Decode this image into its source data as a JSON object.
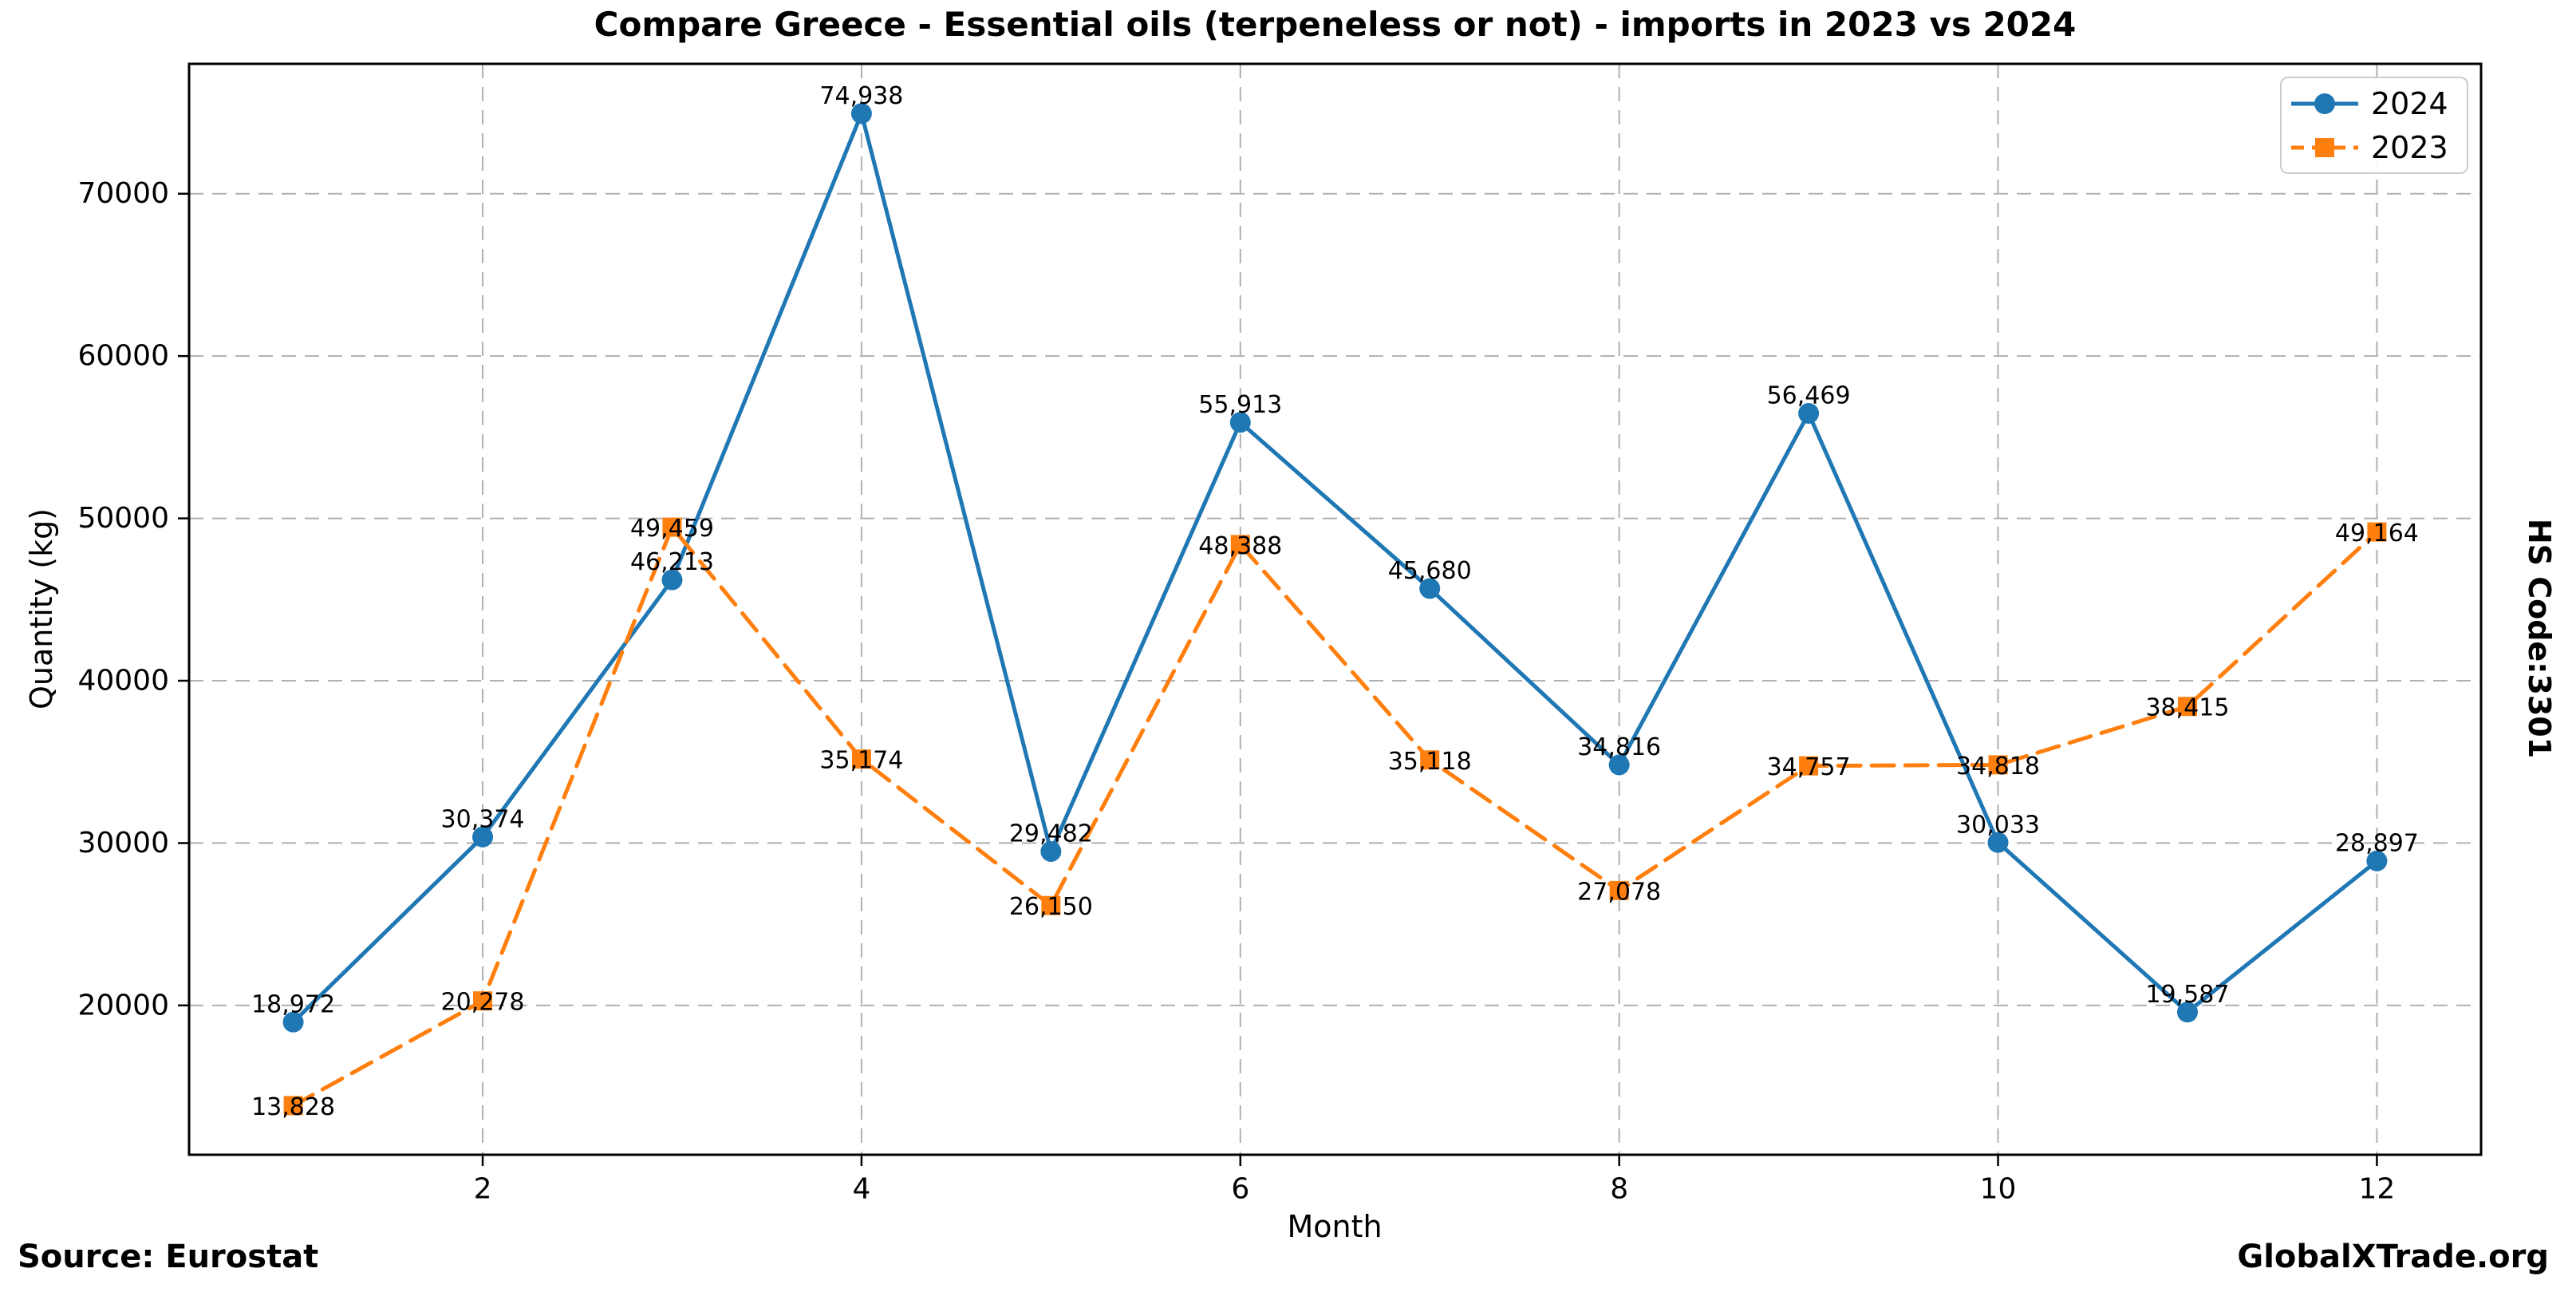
{
  "figure": {
    "source_note": "Source: Eurostat",
    "brand": "GlobalXTrade.org",
    "right_label": "HS Code:3301"
  },
  "chart_data": {
    "type": "line",
    "title": "Compare Greece - Essential oils (terpeneless or not) - imports in 2023 vs 2024",
    "xlabel": "Month",
    "ylabel": "Quantity (kg)",
    "x": [
      1,
      2,
      3,
      4,
      5,
      6,
      7,
      8,
      9,
      10,
      11,
      12
    ],
    "xticks": [
      2,
      4,
      6,
      8,
      10,
      12
    ],
    "xtick_labels": [
      "2",
      "4",
      "6",
      "8",
      "10",
      "12"
    ],
    "yticks": [
      20000,
      30000,
      40000,
      50000,
      60000,
      70000
    ],
    "ytick_labels": [
      "20000",
      "30000",
      "40000",
      "50000",
      "60000",
      "70000"
    ],
    "xlim": [
      0.45,
      12.55
    ],
    "ylim": [
      10800,
      78000
    ],
    "grid": true,
    "legend_position": "upper right",
    "series": [
      {
        "name": "2024",
        "color": "#1f77b4",
        "marker": "circle",
        "line_style": "solid",
        "values": [
          18972,
          30374,
          46213,
          74938,
          29482,
          55913,
          45680,
          34816,
          56469,
          30033,
          19587,
          28897
        ],
        "labels": [
          "18,972",
          "30,374",
          "46,213",
          "74,938",
          "29,482",
          "55,913",
          "45,680",
          "34,816",
          "56,469",
          "30,033",
          "19,587",
          "28,897"
        ]
      },
      {
        "name": "2023",
        "color": "#ff7f0e",
        "marker": "square",
        "line_style": "dashed",
        "values": [
          13828,
          20278,
          49459,
          35174,
          26150,
          48388,
          35118,
          27078,
          34757,
          34818,
          38415,
          49164
        ],
        "labels": [
          "13,828",
          "20,278",
          "49,459",
          "35,174",
          "26,150",
          "48,388",
          "35,118",
          "27,078",
          "34,757",
          "34,818",
          "38,415",
          "49,164"
        ]
      }
    ],
    "grid_color": "#b0b0b0",
    "axis_color": "#000000"
  }
}
